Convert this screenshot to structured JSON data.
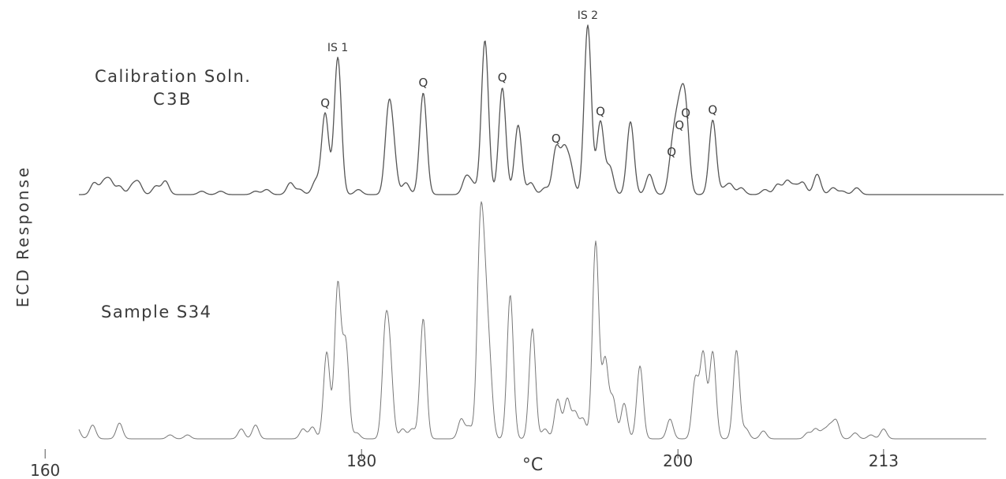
{
  "chart_data": {
    "type": "line",
    "title": "",
    "xlabel": "°C",
    "ylabel": "ECD Response",
    "x_ticks": [
      {
        "value": 160,
        "label": "160"
      },
      {
        "value": 180,
        "label": "180"
      },
      {
        "value": 200,
        "label": "200"
      },
      {
        "value": 213,
        "label": "213"
      }
    ],
    "xlim": [
      158,
      227
    ],
    "ylim": [
      0,
      1
    ],
    "grid": false,
    "series": [
      {
        "name": "Calibration Soln. C3B",
        "label_lines": [
          "Calibration Soln.",
          "C3B"
        ],
        "color": "#555555",
        "peaks": [
          [
            159.5,
            0.05
          ],
          [
            160.6,
            0.03
          ],
          [
            163.1,
            0.07
          ],
          [
            163.7,
            0.07
          ],
          [
            164.1,
            0.08
          ],
          [
            164.7,
            0.05
          ],
          [
            165.5,
            0.05
          ],
          [
            165.9,
            0.07
          ],
          [
            167.0,
            0.05
          ],
          [
            167.6,
            0.08
          ],
          [
            169.9,
            0.02
          ],
          [
            171.1,
            0.02
          ],
          [
            173.3,
            0.02
          ],
          [
            174.0,
            0.03
          ],
          [
            175.5,
            0.07
          ],
          [
            176.1,
            0.03
          ],
          [
            177.1,
            0.08
          ],
          [
            177.7,
            0.48
          ],
          [
            178.5,
            0.81
          ],
          [
            179.8,
            0.03
          ],
          [
            181.7,
            0.45
          ],
          [
            182.0,
            0.23
          ],
          [
            182.8,
            0.07
          ],
          [
            183.9,
            0.6
          ],
          [
            186.6,
            0.1
          ],
          [
            187.0,
            0.06
          ],
          [
            187.8,
            0.91
          ],
          [
            188.9,
            0.63
          ],
          [
            189.9,
            0.41
          ],
          [
            190.7,
            0.07
          ],
          [
            191.6,
            0.04
          ],
          [
            192.3,
            0.27
          ],
          [
            192.8,
            0.24
          ],
          [
            193.2,
            0.16
          ],
          [
            194.3,
            1.0
          ],
          [
            195.1,
            0.43
          ],
          [
            195.7,
            0.16
          ],
          [
            197.0,
            0.43
          ],
          [
            198.2,
            0.12
          ],
          [
            199.6,
            0.19
          ],
          [
            199.9,
            0.27
          ],
          [
            200.2,
            0.35
          ],
          [
            200.5,
            0.42
          ],
          [
            202.2,
            0.44
          ],
          [
            202.9,
            0.03
          ],
          [
            203.3,
            0.06
          ],
          [
            204.0,
            0.04
          ],
          [
            205.5,
            0.03
          ],
          [
            206.3,
            0.06
          ],
          [
            206.9,
            0.08
          ],
          [
            207.4,
            0.05
          ],
          [
            207.9,
            0.07
          ],
          [
            208.8,
            0.12
          ],
          [
            209.8,
            0.04
          ],
          [
            210.4,
            0.02
          ],
          [
            211.3,
            0.04
          ]
        ],
        "annotations": [
          {
            "label": "IS 1",
            "x": 178.5
          },
          {
            "label": "IS 2",
            "x": 194.3
          },
          {
            "label": "Q",
            "x": 177.7
          },
          {
            "label": "Q",
            "x": 183.9
          },
          {
            "label": "Q",
            "x": 188.9
          },
          {
            "label": "Q",
            "x": 192.3
          },
          {
            "label": "Q",
            "x": 195.1
          },
          {
            "label": "Q",
            "x": 199.6
          },
          {
            "label": "Q",
            "x": 200.1
          },
          {
            "label": "Q",
            "x": 200.5
          },
          {
            "label": "Q",
            "x": 202.2
          }
        ]
      },
      {
        "name": "Sample S34",
        "label_lines": [
          "Sample S34"
        ],
        "color": "#777777",
        "peaks": [
          [
            159.6,
            0.12
          ],
          [
            160.1,
            0.06
          ],
          [
            160.5,
            0.03
          ],
          [
            162.0,
            0.06
          ],
          [
            163.0,
            0.07
          ],
          [
            164.7,
            0.08
          ],
          [
            167.9,
            0.02
          ],
          [
            169.0,
            0.02
          ],
          [
            172.4,
            0.05
          ],
          [
            173.3,
            0.07
          ],
          [
            176.3,
            0.05
          ],
          [
            176.9,
            0.06
          ],
          [
            177.8,
            0.44
          ],
          [
            178.5,
            0.78
          ],
          [
            179.0,
            0.48
          ],
          [
            179.7,
            0.03
          ],
          [
            181.5,
            0.5
          ],
          [
            181.8,
            0.35
          ],
          [
            182.6,
            0.05
          ],
          [
            183.2,
            0.05
          ],
          [
            183.9,
            0.61
          ],
          [
            186.3,
            0.1
          ],
          [
            186.8,
            0.06
          ],
          [
            187.5,
            0.97
          ],
          [
            187.8,
            0.55
          ],
          [
            188.1,
            0.3
          ],
          [
            189.4,
            0.73
          ],
          [
            190.8,
            0.56
          ],
          [
            191.6,
            0.05
          ],
          [
            192.4,
            0.2
          ],
          [
            193.0,
            0.2
          ],
          [
            193.5,
            0.13
          ],
          [
            194.0,
            0.1
          ],
          [
            194.8,
            1.0
          ],
          [
            195.4,
            0.4
          ],
          [
            195.9,
            0.2
          ],
          [
            196.6,
            0.18
          ],
          [
            197.6,
            0.37
          ],
          [
            199.5,
            0.1
          ],
          [
            201.1,
            0.3
          ],
          [
            201.6,
            0.43
          ],
          [
            202.2,
            0.44
          ],
          [
            203.7,
            0.45
          ],
          [
            204.3,
            0.05
          ],
          [
            205.4,
            0.04
          ],
          [
            208.2,
            0.03
          ],
          [
            208.7,
            0.05
          ],
          [
            209.2,
            0.04
          ],
          [
            209.6,
            0.06
          ],
          [
            210.0,
            0.09
          ],
          [
            211.2,
            0.03
          ],
          [
            212.2,
            0.02
          ],
          [
            213.0,
            0.05
          ]
        ]
      }
    ]
  }
}
